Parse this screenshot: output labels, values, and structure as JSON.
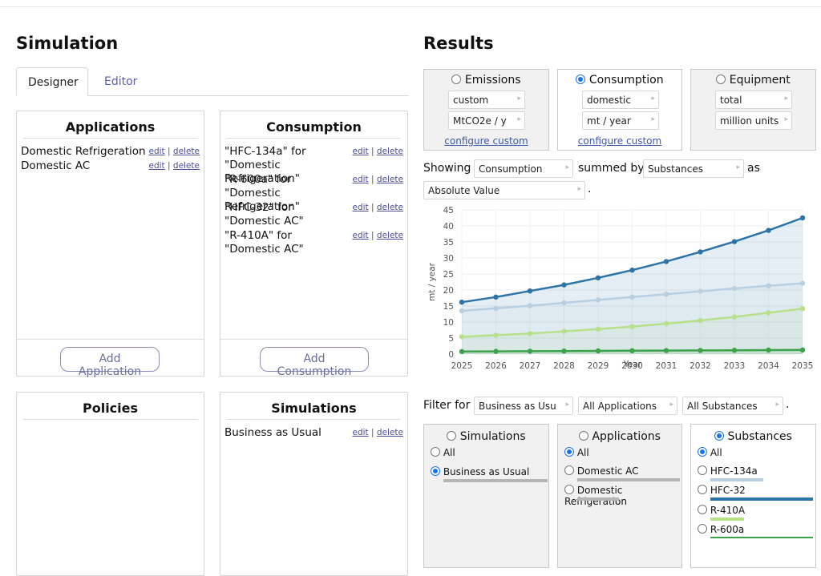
{
  "left": {
    "title": "Simulation",
    "tabs": [
      {
        "label": "Designer"
      },
      {
        "label": "Editor"
      }
    ],
    "applications": {
      "title": "Applications",
      "items": [
        {
          "name": "Domestic Refrigeration"
        },
        {
          "name": "Domestic AC"
        }
      ],
      "add_label": "Add Application"
    },
    "consumption": {
      "title": "Consumption",
      "items": [
        {
          "name": "\"HFC-134a\" for \"Domestic Refrigeration\""
        },
        {
          "name": "\"R-600a\" for \"Domestic Refrigeration\""
        },
        {
          "name": "\"HFC-32\" for \"Domestic AC\""
        },
        {
          "name": "\"R-410A\" for \"Domestic AC\""
        }
      ],
      "add_label": "Add Consumption"
    },
    "policies": {
      "title": "Policies"
    },
    "simulations": {
      "title": "Simulations",
      "items": [
        {
          "name": "Business as Usual"
        }
      ]
    },
    "actions": {
      "edit": "edit",
      "sep": "|",
      "delete": "delete"
    }
  },
  "results": {
    "title": "Results",
    "metrics": [
      {
        "label": "Emissions",
        "selected": false,
        "select1": "custom",
        "select2": "MtCO2e / y",
        "configure": "configure custom"
      },
      {
        "label": "Consumption",
        "selected": true,
        "select1": "domestic",
        "select2": "mt / year",
        "configure": "configure custom"
      },
      {
        "label": "Equipment",
        "selected": false,
        "select1": "total",
        "select2": "million units",
        "configure": ""
      }
    ],
    "showing": {
      "showing_label": "Showing",
      "showing_value": "Consumption",
      "summed_label": "summed by",
      "summed_value": "Substances",
      "as_label": "as",
      "as_value": "Absolute Value",
      "period": "."
    },
    "filter": {
      "label": "Filter for",
      "values": [
        "Business as Usu",
        "All Applications",
        "All Substances"
      ],
      "period": "."
    },
    "filter_boxes": [
      {
        "title": "Simulations",
        "selected": false,
        "items": [
          {
            "label": "All",
            "selected": false
          },
          {
            "label": "Business as Usual",
            "selected": true,
            "color": "#b5b5b5"
          }
        ]
      },
      {
        "title": "Applications",
        "selected": false,
        "items": [
          {
            "label": "All",
            "selected": true
          },
          {
            "label": "Domestic AC",
            "selected": false,
            "color": "#b5b5b5"
          },
          {
            "label": "Domestic Refrigeration",
            "selected": false,
            "color": "#b5b5b5"
          }
        ]
      },
      {
        "title": "Substances",
        "selected": true,
        "items": [
          {
            "label": "All",
            "selected": true
          },
          {
            "label": "HFC-134a",
            "selected": false,
            "color": "#b8cfe2"
          },
          {
            "label": "HFC-32",
            "selected": false,
            "color": "#2c74a8"
          },
          {
            "label": "R-410A",
            "selected": false,
            "color": "#b7e08a"
          },
          {
            "label": "R-600a",
            "selected": false,
            "color": "#3da34a"
          }
        ]
      }
    ]
  },
  "chart_data": {
    "type": "line",
    "xlabel": "Year",
    "ylabel": "mt / year",
    "x": [
      2025,
      2026,
      2027,
      2028,
      2029,
      2030,
      2031,
      2032,
      2033,
      2034,
      2035
    ],
    "ylim": [
      0,
      45
    ],
    "yticks": [
      0,
      5,
      10,
      15,
      20,
      25,
      30,
      35,
      40,
      45
    ],
    "grid": true,
    "series": [
      {
        "name": "HFC-32",
        "color": "#2c74a8",
        "values": [
          16.2,
          17.8,
          19.7,
          21.6,
          23.8,
          26.2,
          28.9,
          31.9,
          35.1,
          38.6,
          42.5
        ]
      },
      {
        "name": "HFC-134a",
        "color": "#b8cfe2",
        "values": [
          13.5,
          14.3,
          15.1,
          16.0,
          16.9,
          17.8,
          18.7,
          19.6,
          20.5,
          21.3,
          22.1
        ]
      },
      {
        "name": "R-410A",
        "color": "#b7e08a",
        "values": [
          5.4,
          5.9,
          6.4,
          7.1,
          7.8,
          8.6,
          9.5,
          10.5,
          11.6,
          12.9,
          14.2
        ]
      },
      {
        "name": "R-600a",
        "color": "#3da34a",
        "values": [
          0.8,
          0.85,
          0.9,
          0.95,
          1.0,
          1.05,
          1.1,
          1.15,
          1.2,
          1.25,
          1.3
        ]
      }
    ]
  }
}
